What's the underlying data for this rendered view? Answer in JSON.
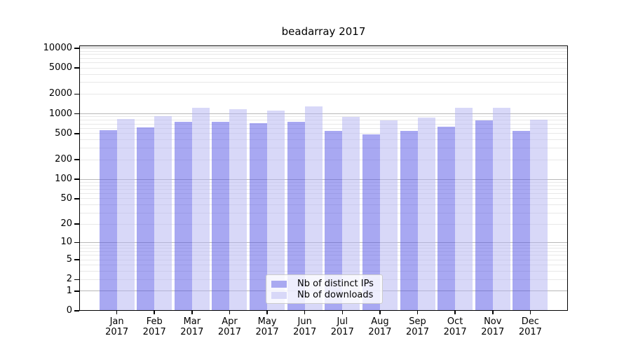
{
  "title": "beadarray 2017",
  "colors": {
    "grid_major": "#b8b8b8",
    "grid_minor": "#e8e8e8",
    "axis": "#000000",
    "legend_border": "#cccccc",
    "legend_background": "rgba(255,255,255,0.8)"
  },
  "chart_data": {
    "type": "bar",
    "title": "beadarray 2017",
    "categories": [
      "Jan",
      "Feb",
      "Mar",
      "Apr",
      "May",
      "Jun",
      "Jul",
      "Aug",
      "Sep",
      "Oct",
      "Nov",
      "Dec"
    ],
    "year_label": "2017",
    "series": [
      {
        "name": "Nb of distinct IPs",
        "bar_color": "rgba(82,82,230,0.5)",
        "swatch_color": "#a9a9f1",
        "values": [
          560,
          620,
          750,
          750,
          725,
          760,
          545,
          490,
          555,
          640,
          800,
          550
        ]
      },
      {
        "name": "Nb of downloads",
        "bar_color": "rgba(177,177,241,0.5)",
        "swatch_color": "#d8d8f8",
        "values": [
          840,
          920,
          1240,
          1180,
          1130,
          1300,
          900,
          795,
          875,
          1225,
          1245,
          810
        ]
      }
    ],
    "y_ticks": [
      10000,
      5000,
      2000,
      1000,
      500,
      200,
      100,
      50,
      20,
      10,
      5,
      2,
      1,
      0
    ],
    "y_scale": "log10(value+1)",
    "ylim": [
      0,
      11000
    ],
    "xlabel": "",
    "ylabel": "",
    "grid": true,
    "legend_position": "lower center"
  }
}
